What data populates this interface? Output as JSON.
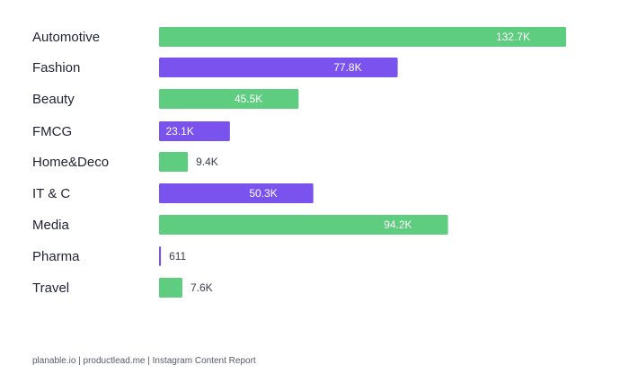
{
  "chart_data": {
    "type": "bar",
    "orientation": "horizontal",
    "categories": [
      "Automotive",
      "Fashion",
      "Beauty",
      "FMCG",
      "Home&Deco",
      "IT & C",
      "Media",
      "Pharma",
      "Travel"
    ],
    "values": [
      132700,
      77800,
      45500,
      23100,
      9400,
      50300,
      94200,
      611,
      7600
    ],
    "value_labels": [
      "132.7K",
      "77.8K",
      "45.5K",
      "23.1K",
      "9.4K",
      "50.3K",
      "94.2K",
      "611",
      "7.6K"
    ],
    "bar_colors": [
      "#5fcd7f",
      "#7a52ee",
      "#5fcd7f",
      "#7a52ee",
      "#5fcd7f",
      "#7a52ee",
      "#5fcd7f",
      "#7a52ee",
      "#5fcd7f"
    ],
    "grid": false,
    "legend": "none"
  },
  "footer": {
    "source": "planable.io | productlead.me | Instagram Content Report"
  }
}
